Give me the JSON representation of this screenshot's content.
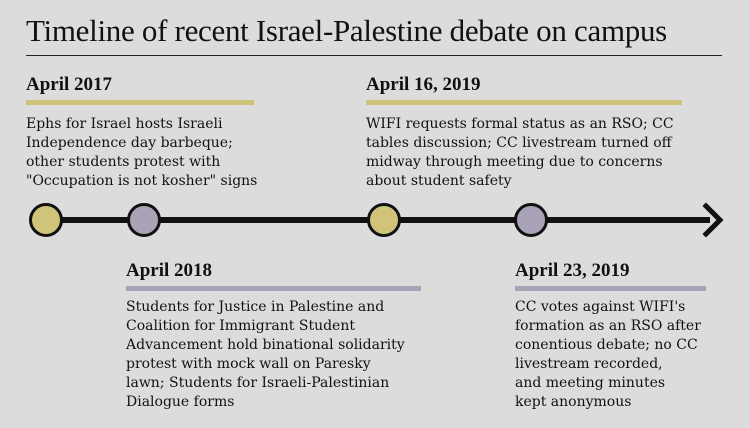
{
  "title": "Timeline of recent Israel-Palestine debate on campus",
  "colors": {
    "gold": "#cfc47a",
    "purple": "#aaa3b8",
    "line": "#111111",
    "background": "#dcdcdc"
  },
  "events": [
    {
      "date": "April 2017",
      "color": "gold",
      "lines": [
        "Ephs for Israel hosts Israeli",
        "Independence day barbeque;",
        "other students protest with",
        "\"Occupation is not kosher\" signs"
      ]
    },
    {
      "date": "April 2018",
      "color": "purple",
      "lines": [
        "Students for Justice in Palestine and",
        "Coalition for Immigrant Student",
        "Advancement hold binational solidarity",
        "protest with mock wall on Paresky",
        "lawn; Students for Israeli-Palestinian",
        "Dialogue forms"
      ]
    },
    {
      "date": "April 16, 2019",
      "color": "gold",
      "lines": [
        "WIFI requests formal status as an RSO; CC",
        "tables discussion; CC livestream turned off",
        "midway through meeting due to concerns",
        "about student safety"
      ]
    },
    {
      "date": "April 23, 2019",
      "color": "purple",
      "lines": [
        "CC votes against WIFI's",
        "formation as an RSO after",
        "conentious debate; no CC",
        "livestream recorded,",
        "and meeting minutes",
        "kept anonymous"
      ]
    }
  ]
}
